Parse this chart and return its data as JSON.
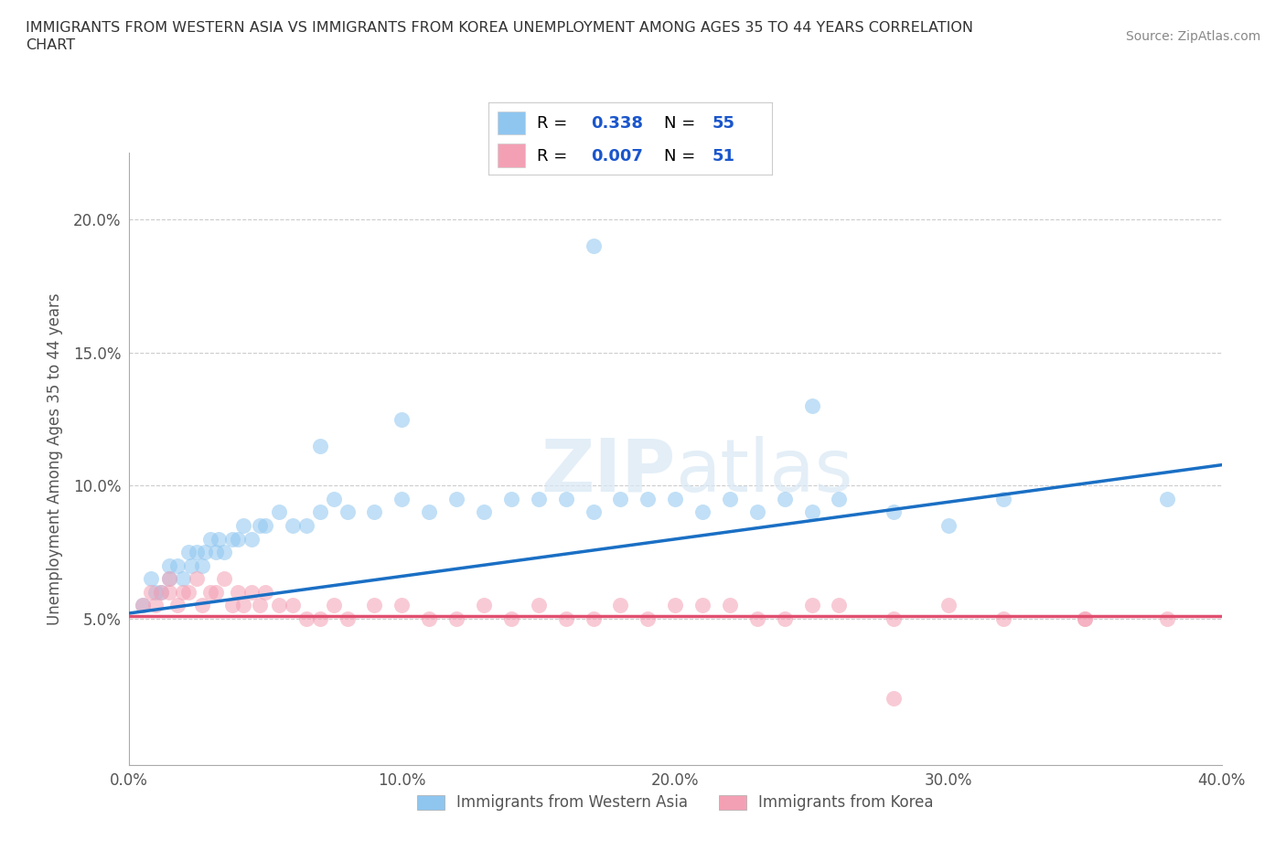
{
  "title_line1": "IMMIGRANTS FROM WESTERN ASIA VS IMMIGRANTS FROM KOREA UNEMPLOYMENT AMONG AGES 35 TO 44 YEARS CORRELATION",
  "title_line2": "CHART",
  "source": "Source: ZipAtlas.com",
  "ylabel": "Unemployment Among Ages 35 to 44 years",
  "xlim": [
    0.0,
    0.4
  ],
  "ylim": [
    -0.005,
    0.225
  ],
  "xticks": [
    0.0,
    0.1,
    0.2,
    0.3,
    0.4
  ],
  "xticklabels": [
    "0.0%",
    "10.0%",
    "20.0%",
    "30.0%",
    "40.0%"
  ],
  "yticks": [
    0.05,
    0.1,
    0.15,
    0.2
  ],
  "yticklabels": [
    "5.0%",
    "10.0%",
    "15.0%",
    "20.0%"
  ],
  "series1_label": "Immigrants from Western Asia",
  "series2_label": "Immigrants from Korea",
  "series1_color": "#8ec6f0",
  "series2_color": "#f4a0b4",
  "series1_line_color": "#1a6fc4",
  "series2_line_color": "#e05070",
  "legend_color": "#1a56cc",
  "series1_R": "0.338",
  "series1_N": "55",
  "series2_R": "0.007",
  "series2_N": "51",
  "watermark_text": "ZIPatlas",
  "background_color": "#ffffff",
  "grid_color": "#cccccc",
  "wa_x": [
    0.005,
    0.008,
    0.01,
    0.012,
    0.015,
    0.015,
    0.018,
    0.02,
    0.022,
    0.023,
    0.025,
    0.027,
    0.028,
    0.03,
    0.032,
    0.033,
    0.035,
    0.038,
    0.04,
    0.042,
    0.045,
    0.048,
    0.05,
    0.055,
    0.06,
    0.065,
    0.07,
    0.075,
    0.08,
    0.09,
    0.1,
    0.11,
    0.12,
    0.13,
    0.14,
    0.15,
    0.16,
    0.17,
    0.18,
    0.19,
    0.2,
    0.21,
    0.22,
    0.23,
    0.24,
    0.25,
    0.26,
    0.28,
    0.3,
    0.32,
    0.1,
    0.07,
    0.25,
    0.38,
    0.17
  ],
  "wa_y": [
    0.055,
    0.065,
    0.06,
    0.06,
    0.07,
    0.065,
    0.07,
    0.065,
    0.075,
    0.07,
    0.075,
    0.07,
    0.075,
    0.08,
    0.075,
    0.08,
    0.075,
    0.08,
    0.08,
    0.085,
    0.08,
    0.085,
    0.085,
    0.09,
    0.085,
    0.085,
    0.09,
    0.095,
    0.09,
    0.09,
    0.095,
    0.09,
    0.095,
    0.09,
    0.095,
    0.095,
    0.095,
    0.09,
    0.095,
    0.095,
    0.095,
    0.09,
    0.095,
    0.09,
    0.095,
    0.09,
    0.095,
    0.09,
    0.085,
    0.095,
    0.125,
    0.115,
    0.13,
    0.095,
    0.19
  ],
  "korea_x": [
    0.005,
    0.008,
    0.01,
    0.012,
    0.015,
    0.015,
    0.018,
    0.02,
    0.022,
    0.025,
    0.027,
    0.03,
    0.032,
    0.035,
    0.038,
    0.04,
    0.042,
    0.045,
    0.048,
    0.05,
    0.055,
    0.06,
    0.065,
    0.07,
    0.075,
    0.08,
    0.09,
    0.1,
    0.11,
    0.12,
    0.13,
    0.14,
    0.15,
    0.16,
    0.17,
    0.18,
    0.19,
    0.2,
    0.21,
    0.22,
    0.23,
    0.24,
    0.25,
    0.26,
    0.28,
    0.3,
    0.32,
    0.35,
    0.38,
    0.28,
    0.35
  ],
  "korea_y": [
    0.055,
    0.06,
    0.055,
    0.06,
    0.06,
    0.065,
    0.055,
    0.06,
    0.06,
    0.065,
    0.055,
    0.06,
    0.06,
    0.065,
    0.055,
    0.06,
    0.055,
    0.06,
    0.055,
    0.06,
    0.055,
    0.055,
    0.05,
    0.05,
    0.055,
    0.05,
    0.055,
    0.055,
    0.05,
    0.05,
    0.055,
    0.05,
    0.055,
    0.05,
    0.05,
    0.055,
    0.05,
    0.055,
    0.055,
    0.055,
    0.05,
    0.05,
    0.055,
    0.055,
    0.05,
    0.055,
    0.05,
    0.05,
    0.05,
    0.02,
    0.05
  ]
}
